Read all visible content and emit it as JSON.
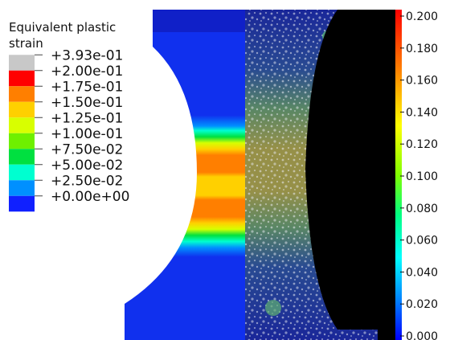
{
  "sim_legend": {
    "title_line1": "Equivalent plastic",
    "title_line2": "strain",
    "entries": [
      {
        "label": "+3.93e-01",
        "color": "#c8c8c8"
      },
      {
        "label": "+2.00e-01",
        "color": "#ff0000"
      },
      {
        "label": "+1.75e-01",
        "color": "#ff7f00"
      },
      {
        "label": "+1.50e-01",
        "color": "#ffd000"
      },
      {
        "label": "+1.25e-01",
        "color": "#d8ff00"
      },
      {
        "label": "+1.00e-01",
        "color": "#6ef000"
      },
      {
        "label": "+7.50e-02",
        "color": "#00e040"
      },
      {
        "label": "+5.00e-02",
        "color": "#00ffd0"
      },
      {
        "label": "+2.50e-02",
        "color": "#0090ff"
      },
      {
        "label": "+0.00e+00",
        "color": "#1020ff"
      }
    ]
  },
  "dic_colorbar": {
    "ticks": [
      "0.200",
      "0.180",
      "0.160",
      "0.140",
      "0.120",
      "0.100",
      "0.080",
      "0.060",
      "0.040",
      "0.020",
      "0.000"
    ],
    "top_color": "#ff0000",
    "bottom_color": "#0000ff"
  },
  "colors": {
    "specimen_blue": "#1030ee",
    "dic_background": "#000000"
  }
}
